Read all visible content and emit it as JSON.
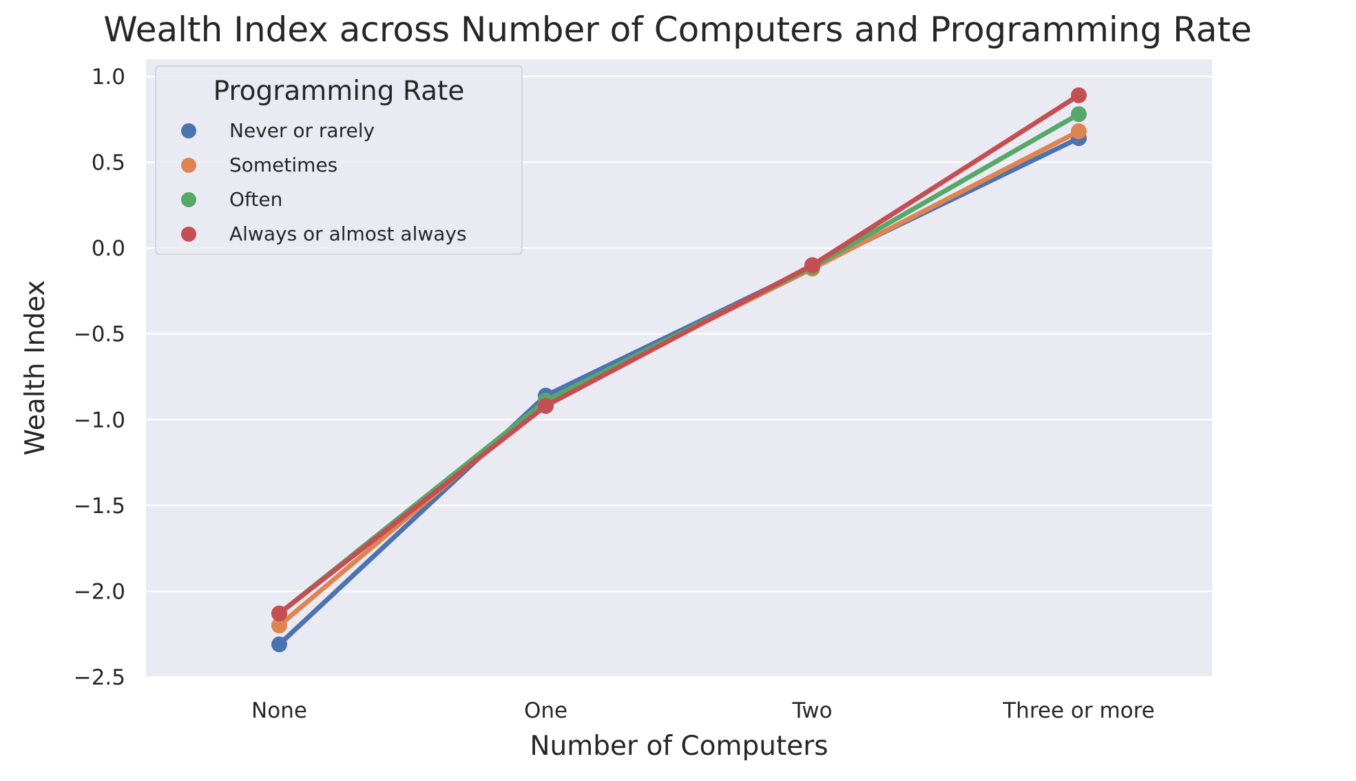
{
  "chart_data": {
    "type": "line",
    "title": "Wealth Index across Number of Computers and Programming Rate",
    "xlabel": "Number of Computers",
    "ylabel": "Wealth Index",
    "categories": [
      "None",
      "One",
      "Two",
      "Three or more"
    ],
    "ylim": [
      -2.5,
      1.1
    ],
    "yticks": [
      -2.5,
      -2.0,
      -1.5,
      -1.0,
      -0.5,
      0.0,
      0.5,
      1.0
    ],
    "ytick_labels": [
      "−2.5",
      "−2.0",
      "−1.5",
      "−1.0",
      "−0.5",
      "0.0",
      "0.5",
      "1.0"
    ],
    "grid": true,
    "legend": {
      "title": "Programming Rate",
      "placement": "top-left"
    },
    "series": [
      {
        "name": "Never or rarely",
        "color": "#4C72B0",
        "values": [
          -2.31,
          -0.86,
          -0.11,
          0.64
        ]
      },
      {
        "name": "Sometimes",
        "color": "#DD8452",
        "values": [
          -2.2,
          -0.89,
          -0.12,
          0.68
        ]
      },
      {
        "name": "Often",
        "color": "#55A868",
        "values": [
          -2.13,
          -0.89,
          -0.11,
          0.78
        ]
      },
      {
        "name": "Always or almost always",
        "color": "#C44E52",
        "values": [
          -2.13,
          -0.92,
          -0.1,
          0.89
        ]
      }
    ]
  }
}
